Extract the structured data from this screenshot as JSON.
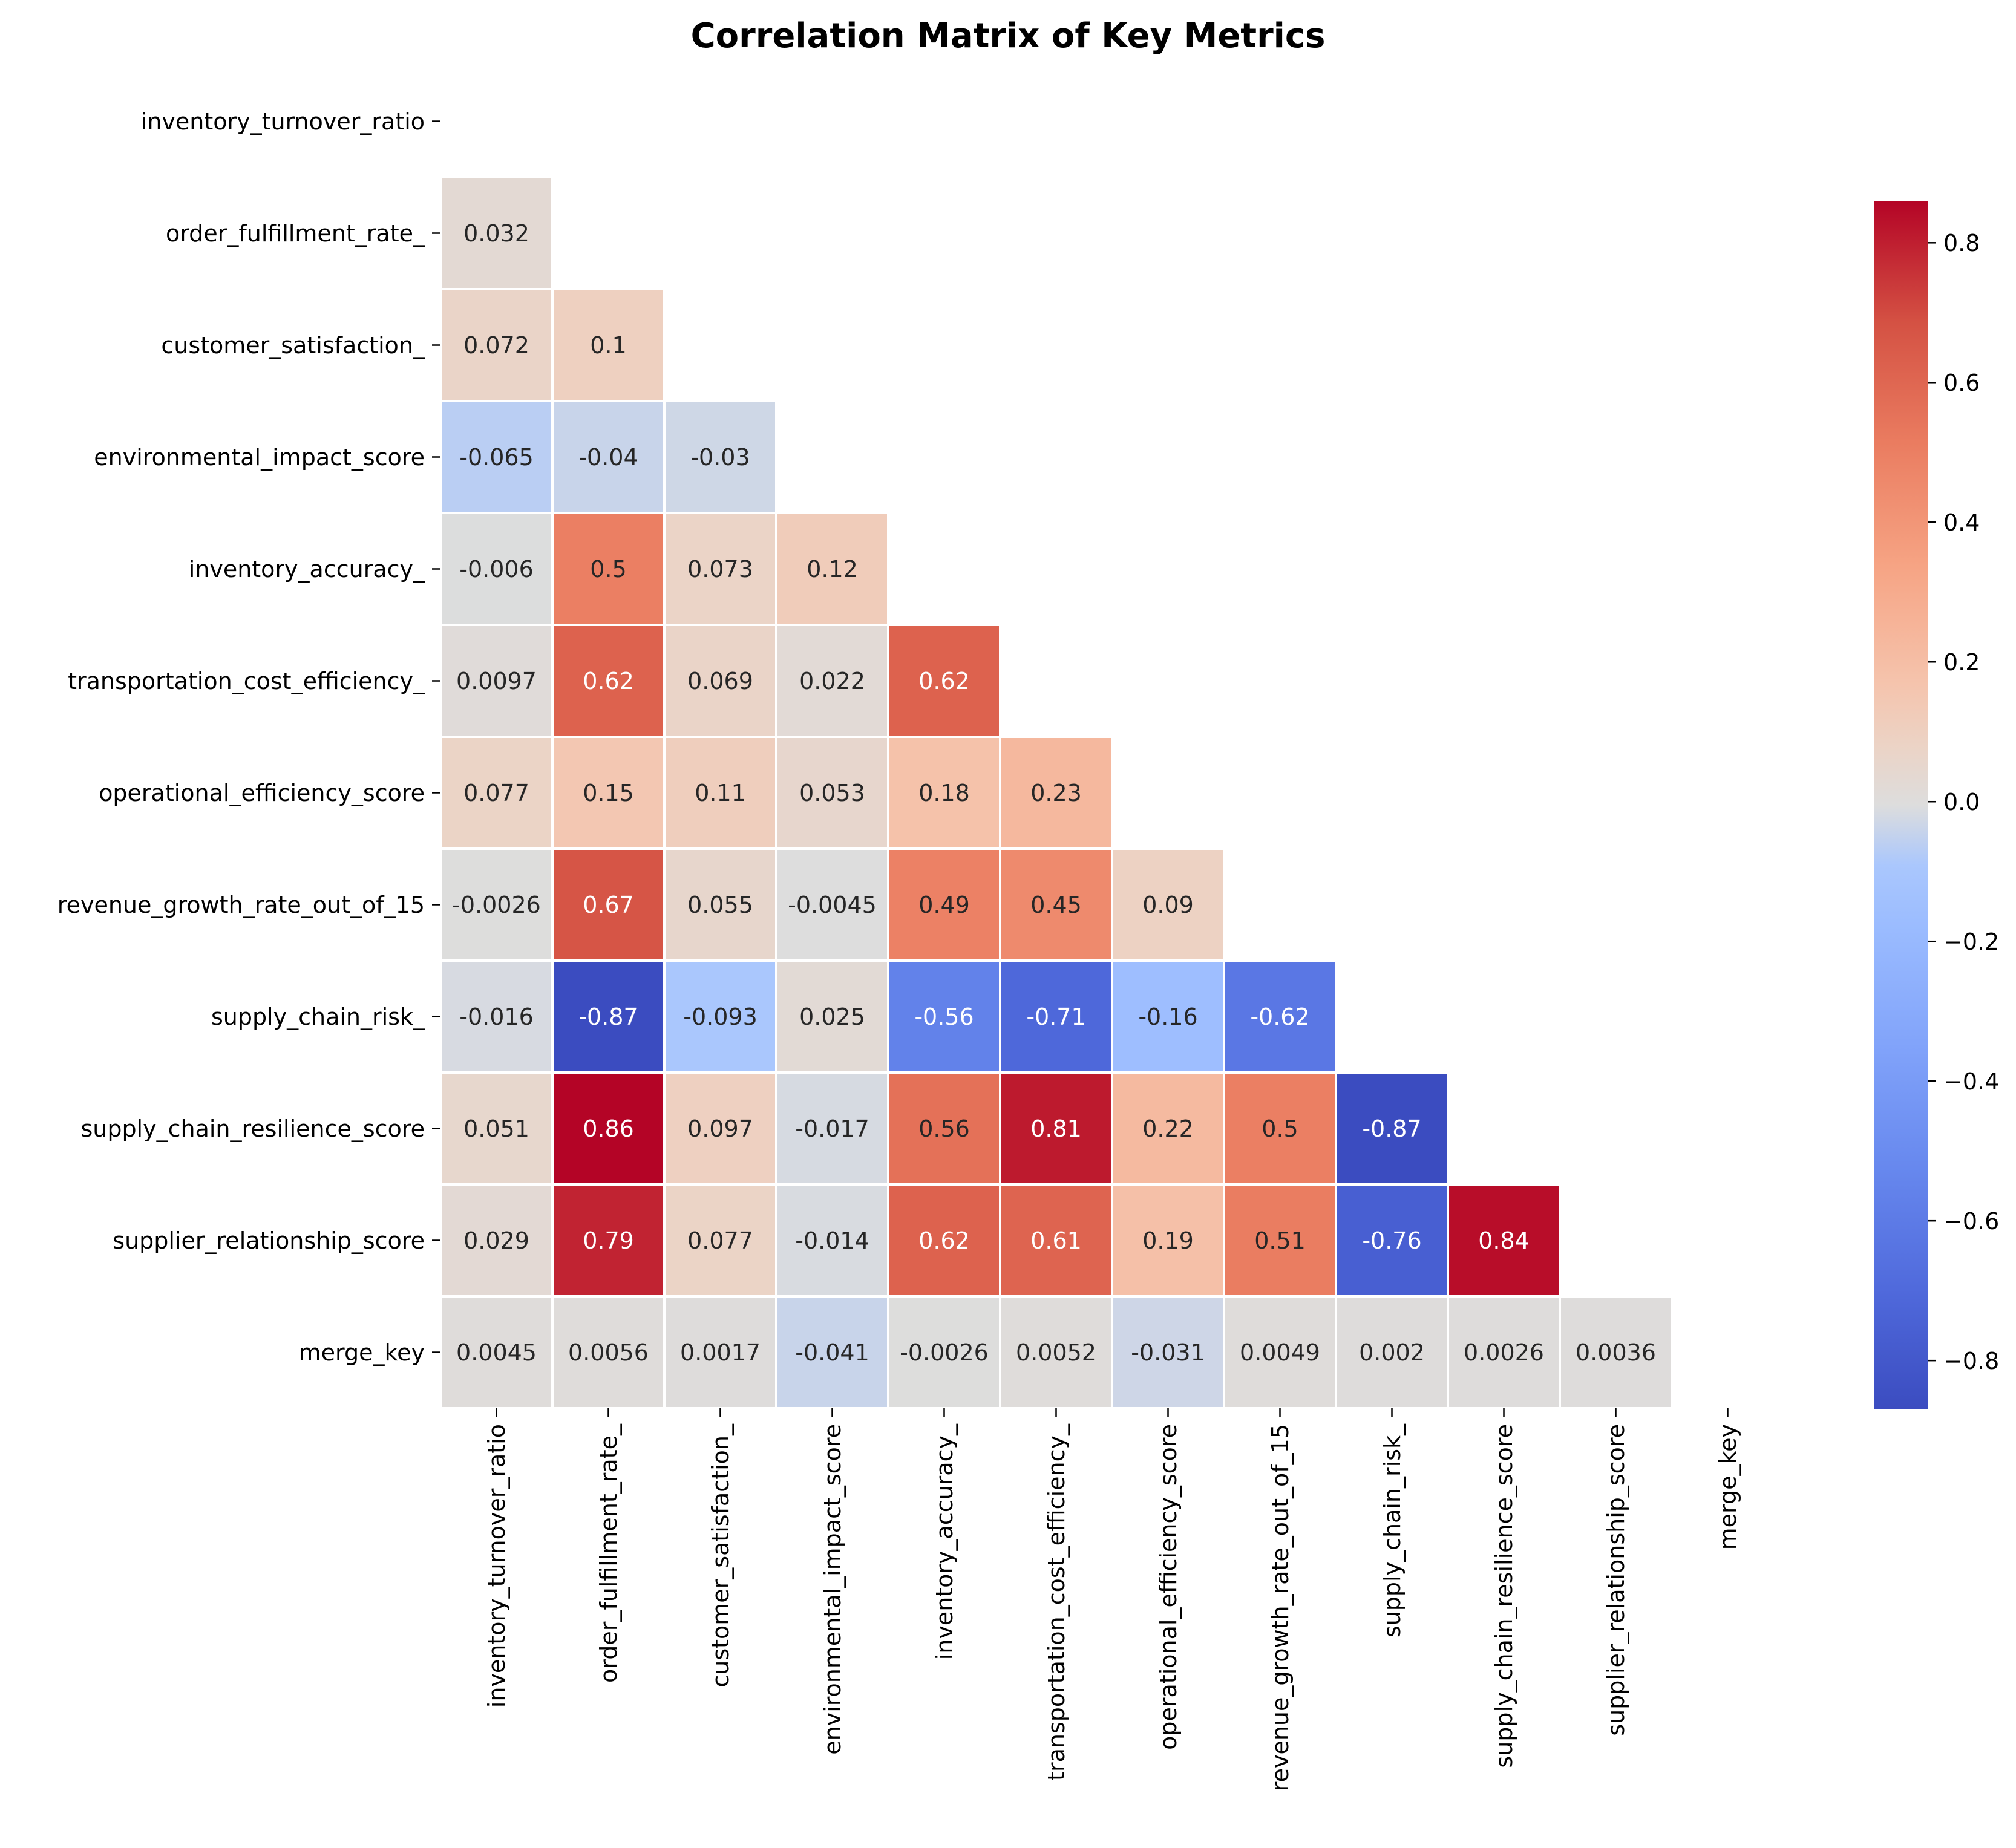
{
  "chart_data": {
    "type": "heatmap",
    "title": "Correlation Matrix of Key Metrics",
    "xlabel": "",
    "ylabel": "",
    "mask": "upper-triangle-including-diagonal",
    "colormap": "coolwarm",
    "colorbar": {
      "min": -0.87,
      "max": 0.86,
      "ticks": [
        -0.8,
        -0.6,
        -0.4,
        -0.2,
        0.0,
        0.2,
        0.4,
        0.6,
        0.8
      ],
      "tick_labels": [
        "−0.8",
        "−0.6",
        "−0.4",
        "−0.2",
        "0.0",
        "0.2",
        "0.4",
        "0.6",
        "0.8"
      ]
    },
    "labels": [
      "inventory_turnover_ratio",
      "order_fulfillment_rate_",
      "customer_satisfaction_",
      "environmental_impact_score",
      "inventory_accuracy_",
      "transportation_cost_efficiency_",
      "operational_efficiency_score",
      "revenue_growth_rate_out_of_15",
      "supply_chain_risk_",
      "supply_chain_resilience_score",
      "supplier_relationship_score",
      "merge_key"
    ],
    "cells": [
      [],
      [
        {
          "v": 0.032,
          "t": "0.032"
        }
      ],
      [
        {
          "v": 0.072,
          "t": "0.072"
        },
        {
          "v": 0.1,
          "t": "0.1"
        }
      ],
      [
        {
          "v": -0.065,
          "t": "-0.065"
        },
        {
          "v": -0.04,
          "t": "-0.04"
        },
        {
          "v": -0.03,
          "t": "-0.03"
        }
      ],
      [
        {
          "v": -0.006,
          "t": "-0.006"
        },
        {
          "v": 0.5,
          "t": "0.5"
        },
        {
          "v": 0.073,
          "t": "0.073"
        },
        {
          "v": 0.12,
          "t": "0.12"
        }
      ],
      [
        {
          "v": 0.0097,
          "t": "0.0097"
        },
        {
          "v": 0.62,
          "t": "0.62"
        },
        {
          "v": 0.069,
          "t": "0.069"
        },
        {
          "v": 0.022,
          "t": "0.022"
        },
        {
          "v": 0.62,
          "t": "0.62"
        }
      ],
      [
        {
          "v": 0.077,
          "t": "0.077"
        },
        {
          "v": 0.15,
          "t": "0.15"
        },
        {
          "v": 0.11,
          "t": "0.11"
        },
        {
          "v": 0.053,
          "t": "0.053"
        },
        {
          "v": 0.18,
          "t": "0.18"
        },
        {
          "v": 0.23,
          "t": "0.23"
        }
      ],
      [
        {
          "v": -0.0026,
          "t": "-0.0026"
        },
        {
          "v": 0.67,
          "t": "0.67"
        },
        {
          "v": 0.055,
          "t": "0.055"
        },
        {
          "v": -0.0045,
          "t": "-0.0045"
        },
        {
          "v": 0.49,
          "t": "0.49"
        },
        {
          "v": 0.45,
          "t": "0.45"
        },
        {
          "v": 0.09,
          "t": "0.09"
        }
      ],
      [
        {
          "v": -0.016,
          "t": "-0.016"
        },
        {
          "v": -0.87,
          "t": "-0.87"
        },
        {
          "v": -0.093,
          "t": "-0.093"
        },
        {
          "v": 0.025,
          "t": "0.025"
        },
        {
          "v": -0.56,
          "t": "-0.56"
        },
        {
          "v": -0.71,
          "t": "-0.71"
        },
        {
          "v": -0.16,
          "t": "-0.16"
        },
        {
          "v": -0.62,
          "t": "-0.62"
        }
      ],
      [
        {
          "v": 0.051,
          "t": "0.051"
        },
        {
          "v": 0.86,
          "t": "0.86"
        },
        {
          "v": 0.097,
          "t": "0.097"
        },
        {
          "v": -0.017,
          "t": "-0.017"
        },
        {
          "v": 0.56,
          "t": "0.56"
        },
        {
          "v": 0.81,
          "t": "0.81"
        },
        {
          "v": 0.22,
          "t": "0.22"
        },
        {
          "v": 0.5,
          "t": "0.5"
        },
        {
          "v": -0.87,
          "t": "-0.87"
        }
      ],
      [
        {
          "v": 0.029,
          "t": "0.029"
        },
        {
          "v": 0.79,
          "t": "0.79"
        },
        {
          "v": 0.077,
          "t": "0.077"
        },
        {
          "v": -0.014,
          "t": "-0.014"
        },
        {
          "v": 0.62,
          "t": "0.62"
        },
        {
          "v": 0.61,
          "t": "0.61"
        },
        {
          "v": 0.19,
          "t": "0.19"
        },
        {
          "v": 0.51,
          "t": "0.51"
        },
        {
          "v": -0.76,
          "t": "-0.76"
        },
        {
          "v": 0.84,
          "t": "0.84"
        }
      ],
      [
        {
          "v": 0.0045,
          "t": "0.0045"
        },
        {
          "v": 0.0056,
          "t": "0.0056"
        },
        {
          "v": 0.0017,
          "t": "0.0017"
        },
        {
          "v": -0.041,
          "t": "-0.041"
        },
        {
          "v": -0.0026,
          "t": "-0.0026"
        },
        {
          "v": 0.0052,
          "t": "0.0052"
        },
        {
          "v": -0.031,
          "t": "-0.031"
        },
        {
          "v": 0.0049,
          "t": "0.0049"
        },
        {
          "v": 0.002,
          "t": "0.002"
        },
        {
          "v": 0.0026,
          "t": "0.0026"
        },
        {
          "v": 0.0036,
          "t": "0.0036"
        }
      ]
    ]
  }
}
